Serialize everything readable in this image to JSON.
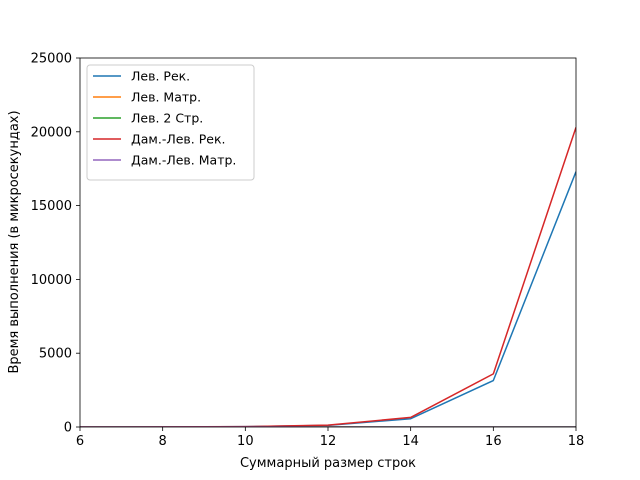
{
  "chart_data": {
    "type": "line",
    "xlabel": "Суммарный размер строк",
    "ylabel": "Время выполнения (в микросекундах)",
    "xlim": [
      6,
      18
    ],
    "ylim": [
      0,
      25000
    ],
    "xticks": [
      6,
      8,
      10,
      12,
      14,
      16,
      18
    ],
    "yticks": [
      0,
      5000,
      10000,
      15000,
      20000,
      25000
    ],
    "x": [
      6,
      8,
      10,
      12,
      14,
      16,
      18
    ],
    "legend_position": "top-left",
    "grid": false,
    "series": [
      {
        "name": "Лев. Рек.",
        "color": "#1f77b4",
        "values": [
          1,
          4,
          22,
          110,
          560,
          3150,
          17300
        ]
      },
      {
        "name": "Лев. Матр.",
        "color": "#ff7f0e",
        "values": [
          1,
          1,
          1,
          2,
          2,
          2,
          3
        ]
      },
      {
        "name": "Лев. 2 Стр.",
        "color": "#2ca02c",
        "values": [
          1,
          1,
          1,
          1,
          2,
          2,
          2
        ]
      },
      {
        "name": "Дам.-Лев. Рек.",
        "color": "#d62728",
        "values": [
          1,
          5,
          25,
          125,
          650,
          3600,
          20300
        ]
      },
      {
        "name": "Дам.-Лев. Матр.",
        "color": "#9467bd",
        "values": [
          1,
          1,
          1,
          2,
          2,
          3,
          3
        ]
      }
    ]
  }
}
